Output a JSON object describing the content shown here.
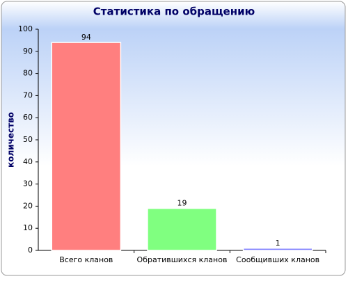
{
  "chart_data": {
    "type": "bar",
    "title": "Статистика по обращению",
    "y_label": "количество",
    "categories": [
      "Всего кланов",
      "Обратившихся кланов",
      "Сообщивших кланов"
    ],
    "values": [
      94,
      19,
      1
    ],
    "colors": [
      "#ff7f7f",
      "#80ff80",
      "#8080ff"
    ],
    "ylim": [
      0,
      100
    ],
    "yticks": [
      0,
      10,
      20,
      30,
      40,
      50,
      60,
      70,
      80,
      90,
      100
    ],
    "grid": false
  }
}
